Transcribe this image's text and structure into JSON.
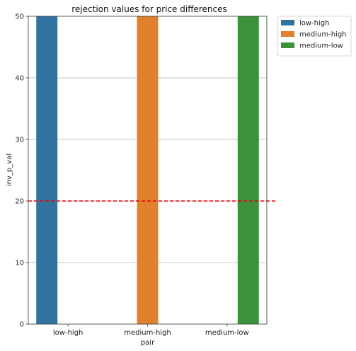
{
  "chart_data": {
    "type": "bar",
    "title": "rejection values for price differences",
    "xlabel": "pair",
    "ylabel": "inv_p_val",
    "categories": [
      "low-high",
      "medium-high",
      "medium-low"
    ],
    "series": [
      {
        "name": "low-high",
        "color": "#3274a1",
        "values": [
          50,
          null,
          null
        ]
      },
      {
        "name": "medium-high",
        "color": "#e1812c",
        "values": [
          null,
          50,
          null
        ]
      },
      {
        "name": "medium-low",
        "color": "#3a923a",
        "values": [
          null,
          null,
          50
        ]
      }
    ],
    "ylim": [
      0,
      50
    ],
    "yticks": [
      0,
      10,
      20,
      30,
      40,
      50
    ],
    "grid": {
      "y": true,
      "x": false
    },
    "threshold": {
      "value": 20,
      "color": "#e8000b",
      "style": "dashed"
    },
    "legend": {
      "placement": "outside-top-right"
    }
  }
}
